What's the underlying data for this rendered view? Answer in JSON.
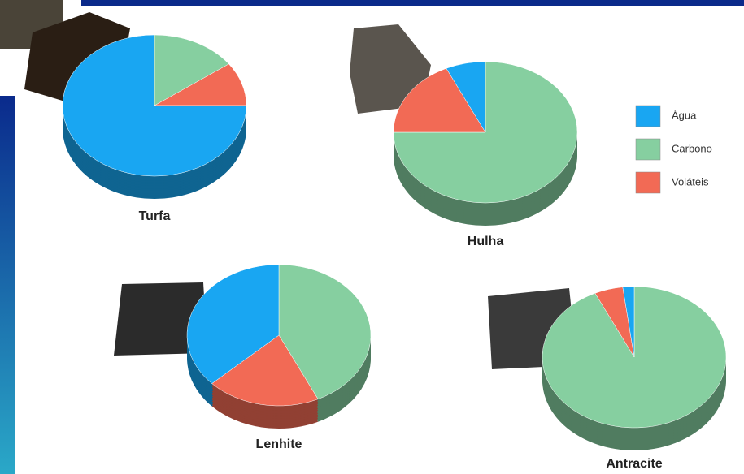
{
  "chart_data": [
    {
      "type": "pie",
      "title": "Turfa",
      "categories": [
        "Água",
        "Carbono",
        "Voláteis"
      ],
      "values": [
        75,
        15,
        10
      ],
      "colors": [
        "#19a6f2",
        "#86cfa0",
        "#f26a55"
      ]
    },
    {
      "type": "pie",
      "title": "Hulha",
      "categories": [
        "Água",
        "Carbono",
        "Voláteis"
      ],
      "values": [
        7,
        75,
        18
      ],
      "colors": [
        "#19a6f2",
        "#86cfa0",
        "#f26a55"
      ]
    },
    {
      "type": "pie",
      "title": "Lenhite",
      "categories": [
        "Água",
        "Carbono",
        "Voláteis"
      ],
      "values": [
        37,
        43,
        20
      ],
      "colors": [
        "#19a6f2",
        "#86cfa0",
        "#f26a55"
      ]
    },
    {
      "type": "pie",
      "title": "Antracite",
      "categories": [
        "Água",
        "Carbono",
        "Voláteis"
      ],
      "values": [
        2,
        93,
        5
      ],
      "colors": [
        "#19a6f2",
        "#86cfa0",
        "#f26a55"
      ]
    }
  ]
}
